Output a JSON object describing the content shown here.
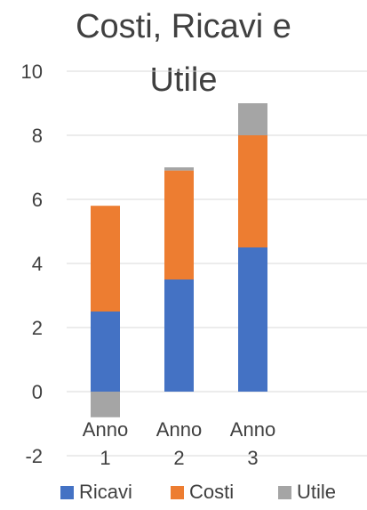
{
  "chart_data": {
    "type": "bar",
    "stacked": true,
    "title_lines": [
      "Costi, Ricavi e",
      "Utile"
    ],
    "categories": [
      [
        "Anno",
        "1"
      ],
      [
        "Anno",
        "2"
      ],
      [
        "Anno",
        "3"
      ]
    ],
    "series": [
      {
        "name": "Ricavi",
        "color": "#4472C4",
        "values": [
          2.5,
          3.5,
          4.5
        ]
      },
      {
        "name": "Costi",
        "color": "#ED7D31",
        "values": [
          3.3,
          3.4,
          3.5
        ]
      },
      {
        "name": "Utile",
        "color": "#A5A5A5",
        "values": [
          -0.8,
          0.1,
          1.0
        ]
      }
    ],
    "ylim": [
      -2,
      10
    ],
    "yticks": [
      "-2",
      "0",
      "2",
      "4",
      "6",
      "8",
      "10"
    ],
    "grid": true,
    "legend": "bottom"
  }
}
